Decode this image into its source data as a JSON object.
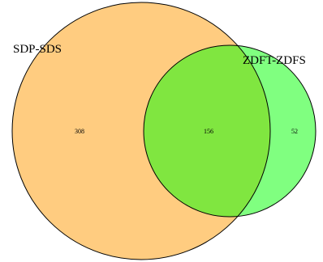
{
  "venn": {
    "sets": [
      {
        "name": "SDP-SDS",
        "color": "#ffcc80"
      },
      {
        "name": "ZDFT-ZDFS",
        "color": "#80ff80"
      }
    ],
    "overlap_color": "#80e640",
    "outline_color": "#000000",
    "counts": {
      "only_a": "308",
      "both": "156",
      "only_b": "52"
    }
  }
}
